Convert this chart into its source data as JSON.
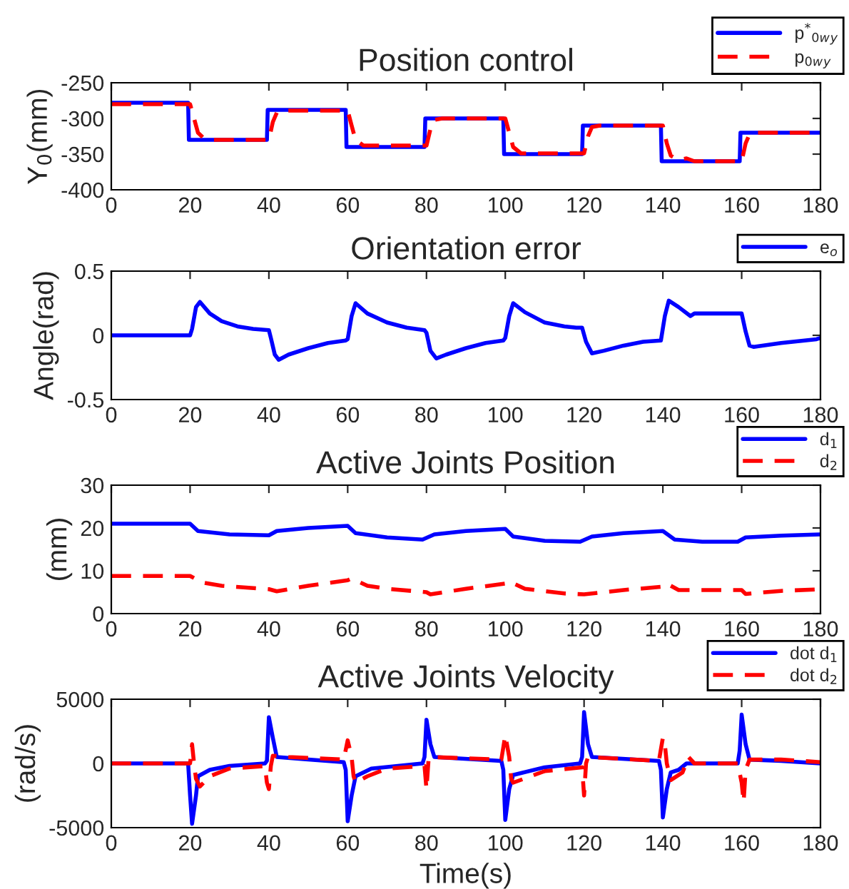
{
  "chart_data": [
    {
      "type": "line",
      "title": "Position control",
      "ylabel": "Y$_{0}$(mm)",
      "xlim": [
        0,
        180
      ],
      "xticks": [
        0,
        20,
        40,
        60,
        80,
        100,
        120,
        140,
        160,
        180
      ],
      "ylim": [
        -400,
        -250
      ],
      "yticks": [
        -400,
        -350,
        -300,
        -250
      ],
      "grid": false,
      "legend": "top right",
      "series": [
        {
          "name": "p$^{*}$$_{0w}$$_{y}$",
          "color": "#0000ff",
          "line_style": "solid",
          "x": [
            0,
            19.5,
            19.7,
            39.5,
            39.7,
            59.5,
            59.7,
            79.5,
            79.7,
            99.5,
            99.7,
            119.5,
            119.7,
            139.5,
            139.7,
            159.5,
            159.7,
            180
          ],
          "values": [
            -278,
            -278,
            -330,
            -330,
            -288,
            -288,
            -340,
            -340,
            -300,
            -300,
            -350,
            -350,
            -310,
            -310,
            -360,
            -360,
            -320,
            -320
          ]
        },
        {
          "name": "p$_{0w}$$_{y}$",
          "color": "#ff0000",
          "line_style": "dashed",
          "x": [
            0,
            20,
            21,
            22,
            23.5,
            26,
            40,
            41,
            42,
            44,
            60,
            61,
            62,
            64,
            80,
            81,
            82,
            84,
            100,
            101,
            102,
            104,
            120,
            121,
            122,
            124,
            140,
            141,
            142,
            144,
            146,
            148,
            160,
            161,
            162,
            164,
            180
          ],
          "values": [
            -280,
            -280,
            -300,
            -320,
            -328,
            -330,
            -330,
            -305,
            -292,
            -289,
            -289,
            -310,
            -330,
            -338,
            -338,
            -315,
            -302,
            -300,
            -300,
            -320,
            -340,
            -349,
            -349,
            -325,
            -312,
            -310,
            -310,
            -335,
            -352,
            -358,
            -356,
            -360,
            -360,
            -335,
            -322,
            -320,
            -320
          ]
        }
      ]
    },
    {
      "type": "line",
      "title": "Orientation error",
      "ylabel": "Angle(rad)",
      "xlim": [
        0,
        180
      ],
      "xticks": [
        0,
        20,
        40,
        60,
        80,
        100,
        120,
        140,
        160,
        180
      ],
      "ylim": [
        -0.5,
        0.5
      ],
      "yticks": [
        -0.5,
        0,
        0.5
      ],
      "grid": false,
      "legend": "top right",
      "series": [
        {
          "name": "e$_{o}$",
          "color": "#0000ff",
          "line_style": "solid",
          "x": [
            0,
            20,
            20.5,
            21.5,
            22.5,
            25,
            28,
            32,
            36,
            40,
            40.5,
            41.5,
            42.5,
            45,
            50,
            55,
            59.5,
            60,
            61,
            62,
            65,
            70,
            75,
            79.5,
            80,
            81,
            82.5,
            85,
            90,
            95,
            99.5,
            100,
            101,
            102,
            105,
            110,
            115,
            118,
            119.5,
            120.5,
            122,
            125,
            130,
            135,
            139.5,
            140.5,
            141.5,
            144,
            147,
            148,
            160,
            161,
            162,
            163,
            170,
            179,
            180
          ],
          "values": [
            0,
            0,
            0.05,
            0.22,
            0.26,
            0.17,
            0.11,
            0.07,
            0.05,
            0.04,
            -0.02,
            -0.15,
            -0.19,
            -0.15,
            -0.1,
            -0.06,
            -0.04,
            -0.03,
            0.15,
            0.25,
            0.17,
            0.1,
            0.06,
            0.04,
            0.02,
            -0.12,
            -0.18,
            -0.15,
            -0.1,
            -0.06,
            -0.04,
            -0.02,
            0.15,
            0.25,
            0.18,
            0.1,
            0.07,
            0.06,
            0.06,
            -0.05,
            -0.14,
            -0.12,
            -0.08,
            -0.05,
            -0.04,
            0.15,
            0.27,
            0.22,
            0.15,
            0.17,
            0.17,
            0.03,
            -0.08,
            -0.09,
            -0.06,
            -0.03,
            -0.02
          ]
        }
      ]
    },
    {
      "type": "line",
      "title": "Active Joints Position",
      "ylabel": "(mm)",
      "xlim": [
        0,
        180
      ],
      "xticks": [
        0,
        20,
        40,
        60,
        80,
        100,
        120,
        140,
        160,
        180
      ],
      "ylim": [
        0,
        30
      ],
      "yticks": [
        0,
        10,
        20,
        30
      ],
      "grid": false,
      "legend": "top right",
      "series": [
        {
          "name": "d$_{1}$",
          "color": "#0000ff",
          "line_style": "solid",
          "x": [
            0,
            20,
            22,
            30,
            40,
            42,
            50,
            60,
            62,
            70,
            79,
            82,
            90,
            100,
            102,
            110,
            119,
            122,
            130,
            140,
            143,
            150,
            159,
            161,
            170,
            180
          ],
          "values": [
            21,
            21,
            19.3,
            18.5,
            18.3,
            19.3,
            20,
            20.5,
            18.8,
            17.8,
            17.3,
            18.5,
            19.3,
            19.8,
            18,
            17,
            16.8,
            18,
            18.8,
            19.3,
            17.3,
            16.8,
            16.8,
            17.8,
            18.2,
            18.5
          ]
        },
        {
          "name": "d$_{2}$",
          "color": "#ff0000",
          "line_style": "dashed",
          "x": [
            0,
            20,
            23,
            28,
            40,
            42,
            50,
            60,
            61,
            65,
            70,
            80,
            81,
            90,
            100,
            101,
            105,
            115,
            120,
            130,
            140,
            141,
            144,
            155,
            160,
            161,
            170,
            180
          ],
          "values": [
            8.8,
            8.8,
            7.3,
            6.5,
            5.7,
            5.2,
            6.5,
            7.8,
            8.2,
            6.5,
            5.8,
            5,
            4.5,
            5.8,
            7,
            7.5,
            5.8,
            4.7,
            4.5,
            5.5,
            6.3,
            7,
            5.5,
            5.5,
            5.5,
            4.6,
            5.3,
            5.7
          ]
        }
      ]
    },
    {
      "type": "line",
      "title": "Active Joints Velocity",
      "xlabel": "Time(s)",
      "ylabel": "(rad/s)",
      "xlim": [
        0,
        180
      ],
      "xticks": [
        0,
        20,
        40,
        60,
        80,
        100,
        120,
        140,
        160,
        180
      ],
      "ylim": [
        -5000,
        5000
      ],
      "yticks": [
        -5000,
        0,
        5000
      ],
      "grid": false,
      "legend": "top right",
      "series": [
        {
          "name": "dot d$_{1}$",
          "color": "#0000ff",
          "line_style": "solid",
          "x": [
            0,
            19.5,
            20,
            20.5,
            21.5,
            22,
            25,
            30,
            39,
            39.5,
            40,
            41,
            42,
            50,
            59,
            59.5,
            60,
            61,
            62,
            66,
            79,
            79.5,
            80,
            81,
            82,
            99,
            99.5,
            100,
            101,
            102,
            110,
            119,
            119.5,
            120,
            121,
            122,
            139,
            139.5,
            140,
            141,
            142,
            144,
            146,
            159,
            159.5,
            160,
            161,
            162,
            170,
            180
          ],
          "values": [
            0,
            0,
            -2500,
            -4700,
            -2500,
            -1000,
            -500,
            -200,
            0,
            200,
            3600,
            2000,
            500,
            300,
            100,
            -500,
            -4500,
            -2500,
            -1000,
            -400,
            0,
            500,
            3400,
            1500,
            500,
            200,
            -500,
            -4400,
            -2000,
            -900,
            -300,
            0,
            500,
            4000,
            1500,
            500,
            200,
            -500,
            -4200,
            -2000,
            -700,
            -500,
            0,
            0,
            1000,
            3800,
            1500,
            300,
            200,
            0
          ]
        },
        {
          "name": "dot d$_{2}$",
          "color": "#ff0000",
          "line_style": "dashed",
          "x": [
            0,
            20,
            20.5,
            21,
            21.5,
            22.5,
            25,
            30,
            39,
            39.5,
            40,
            40.5,
            41,
            45,
            59,
            60,
            61,
            61.5,
            62,
            65,
            70,
            79.5,
            80,
            80.5,
            81,
            99,
            100,
            101,
            101.5,
            102,
            110,
            119.5,
            120,
            120.5,
            121,
            139,
            140,
            140.5,
            141,
            142,
            145,
            146.5,
            148,
            159,
            160,
            160.5,
            161,
            162,
            170,
            180
          ],
          "values": [
            0,
            0,
            1500,
            0,
            -1200,
            -1800,
            -1000,
            -400,
            -200,
            -1500,
            -2000,
            -200,
            600,
            500,
            300,
            1800,
            500,
            -1000,
            -1500,
            -1000,
            -400,
            -200,
            -2000,
            200,
            500,
            300,
            2200,
            500,
            -1200,
            -1500,
            -600,
            -300,
            -2500,
            0,
            500,
            200,
            2000,
            1500,
            0,
            -1300,
            -700,
            500,
            0,
            0,
            -1500,
            -3000,
            -500,
            300,
            300,
            100
          ]
        }
      ]
    }
  ]
}
